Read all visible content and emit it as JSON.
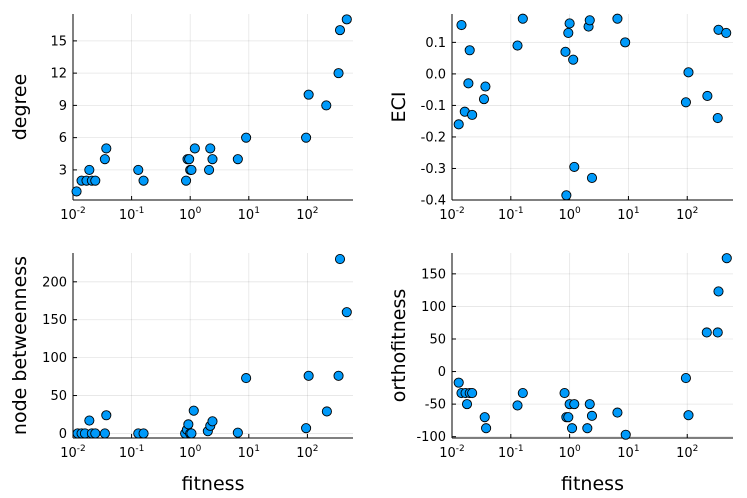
{
  "chart_data": [
    {
      "id": "degree",
      "type": "scatter",
      "xscale": "log10",
      "xlabel": "",
      "ylabel": "degree",
      "xlim": [
        0.01,
        600
      ],
      "ylim": [
        0.2,
        17.5
      ],
      "xtick_exponents": [
        "-2",
        "-1",
        "0",
        "1",
        "2"
      ],
      "yticks": [
        3,
        6,
        9,
        12,
        15
      ],
      "ytick_labels": [
        "3",
        "6",
        "9",
        "12",
        "15"
      ],
      "grid": true,
      "x": [
        0.0115,
        0.014,
        0.017,
        0.019,
        0.021,
        0.024,
        0.035,
        0.037,
        0.13,
        0.16,
        0.85,
        0.9,
        0.96,
        1.0,
        1.05,
        1.2,
        2.1,
        2.2,
        2.4,
        6.5,
        9.0,
        95,
        105,
        210,
        340,
        360,
        470
      ],
      "y": [
        1,
        2,
        2,
        3,
        2,
        2,
        4,
        5,
        3,
        2,
        2,
        4,
        4,
        3,
        3,
        5,
        3,
        5,
        4,
        4,
        6,
        6,
        10,
        9,
        12,
        16,
        17
      ]
    },
    {
      "id": "eci",
      "type": "scatter",
      "xscale": "log10",
      "xlabel": "",
      "ylabel": "ECI",
      "xlim": [
        0.01,
        600
      ],
      "ylim": [
        -0.4,
        0.19
      ],
      "xtick_exponents": [
        "-2",
        "-1",
        "0",
        "1",
        "2"
      ],
      "yticks": [
        -0.4,
        -0.3,
        -0.2,
        -0.1,
        0.0,
        0.1
      ],
      "ytick_labels": [
        "-0.4",
        "-0.3",
        "-0.2",
        "-0.1",
        "0.0",
        "0.1"
      ],
      "grid": true,
      "x": [
        0.013,
        0.0145,
        0.0165,
        0.019,
        0.02,
        0.022,
        0.035,
        0.037,
        0.13,
        0.16,
        0.85,
        0.88,
        0.95,
        1.0,
        1.15,
        1.2,
        2.1,
        2.2,
        2.4,
        6.5,
        8.8,
        95,
        105,
        220,
        330,
        340,
        460
      ],
      "y": [
        -0.16,
        0.155,
        -0.12,
        -0.03,
        0.075,
        -0.13,
        -0.08,
        -0.04,
        0.09,
        0.175,
        0.07,
        -0.385,
        0.13,
        0.16,
        0.045,
        -0.295,
        0.15,
        0.17,
        -0.33,
        0.175,
        0.1,
        -0.09,
        0.005,
        -0.07,
        -0.14,
        0.14,
        0.13
      ]
    },
    {
      "id": "node-betweenness",
      "type": "scatter",
      "xscale": "log10",
      "xlabel": "fitness",
      "ylabel": "node betweenness",
      "xlim": [
        0.01,
        600
      ],
      "ylim": [
        -6,
        238
      ],
      "xtick_exponents": [
        "-2",
        "-1",
        "0",
        "1",
        "2"
      ],
      "yticks": [
        0,
        50,
        100,
        150,
        200
      ],
      "ytick_labels": [
        "0",
        "50",
        "100",
        "150",
        "200"
      ],
      "grid": true,
      "x": [
        0.012,
        0.014,
        0.016,
        0.019,
        0.021,
        0.024,
        0.035,
        0.037,
        0.13,
        0.16,
        0.82,
        0.88,
        0.93,
        1.0,
        1.05,
        1.15,
        2.0,
        2.2,
        2.4,
        6.5,
        9.0,
        95,
        105,
        215,
        340,
        360,
        470
      ],
      "y": [
        0,
        0,
        0,
        17,
        0,
        0,
        0,
        24,
        0,
        0,
        0,
        5,
        12,
        0,
        0,
        30,
        3,
        10,
        16,
        1,
        73,
        7,
        76,
        29,
        76,
        230,
        160
      ]
    },
    {
      "id": "orthofitness",
      "type": "scatter",
      "xscale": "log10",
      "xlabel": "fitness",
      "ylabel": "orthofitness",
      "xlim": [
        0.01,
        600
      ],
      "ylim": [
        -102,
        182
      ],
      "xtick_exponents": [
        "-2",
        "-1",
        "0",
        "1",
        "2"
      ],
      "yticks": [
        -100,
        -50,
        0,
        50,
        100,
        150
      ],
      "ytick_labels": [
        "-100",
        "-50",
        "0",
        "50",
        "100",
        "150"
      ],
      "grid": true,
      "x": [
        0.013,
        0.0145,
        0.017,
        0.018,
        0.02,
        0.022,
        0.036,
        0.038,
        0.13,
        0.16,
        0.82,
        0.88,
        0.95,
        1.0,
        1.1,
        1.2,
        2.0,
        2.2,
        2.4,
        6.5,
        9.0,
        95,
        105,
        215,
        330,
        340,
        470
      ],
      "y": [
        -17,
        -33,
        -33,
        -50,
        -33,
        -33,
        -70,
        -87,
        -52,
        -33,
        -33,
        -70,
        -70,
        -50,
        -87,
        -50,
        -87,
        -50,
        -68,
        -63,
        -97,
        -10,
        -67,
        60,
        60,
        123,
        174
      ]
    }
  ]
}
